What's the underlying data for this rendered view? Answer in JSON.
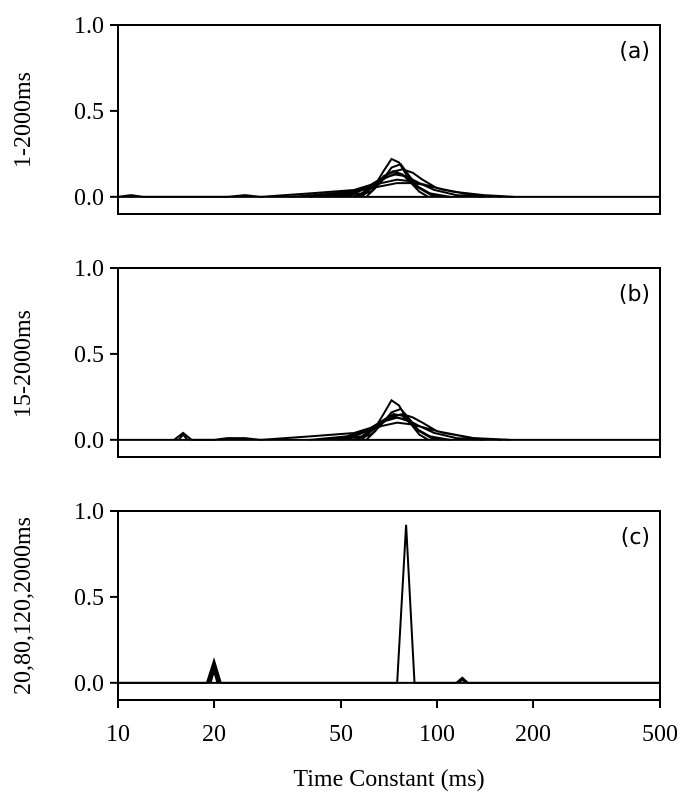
{
  "chart_data": {
    "type": "line",
    "x_scale": "log",
    "xlabel": "Time Constant (ms)",
    "xlim": [
      10,
      500
    ],
    "x_ticks": [
      10,
      20,
      50,
      100,
      200,
      500
    ],
    "x_tick_labels": [
      "10",
      "20",
      "50",
      "100",
      "200",
      "500"
    ],
    "grid": false,
    "legend": "none",
    "panels": [
      {
        "id": "a",
        "letter": "(a)",
        "ylabel": "1-2000ms",
        "ylim": [
          -0.1,
          1.0
        ],
        "y_ticks": [
          0.0,
          0.5,
          1.0
        ],
        "y_tick_labels": [
          "0.0",
          "0.5",
          "1.0"
        ],
        "series": [
          {
            "x": [
              10,
              11,
              12,
              14,
              17,
              22,
              25,
              28,
              40,
              55,
              62,
              66,
              70,
              74,
              78,
              84,
              90,
              100,
              130,
              170
            ],
            "y": [
              0,
              0.01,
              0,
              0,
              0,
              0,
              0.01,
              0,
              0.02,
              0.04,
              0.07,
              0.1,
              0.13,
              0.15,
              0.16,
              0.14,
              0.1,
              0.05,
              0.01,
              0
            ]
          },
          {
            "x": [
              50,
              58,
              64,
              68,
              72,
              76,
              80,
              86,
              95,
              110
            ],
            "y": [
              0,
              0.02,
              0.07,
              0.15,
              0.22,
              0.2,
              0.13,
              0.06,
              0.02,
              0
            ]
          },
          {
            "x": [
              55,
              62,
              67,
              72,
              77,
              82,
              88,
              96,
              110
            ],
            "y": [
              0,
              0.03,
              0.09,
              0.17,
              0.19,
              0.12,
              0.05,
              0.01,
              0
            ]
          },
          {
            "x": [
              45,
              55,
              62,
              68,
              74,
              80,
              88,
              98,
              115,
              140
            ],
            "y": [
              0,
              0.02,
              0.06,
              0.11,
              0.13,
              0.12,
              0.08,
              0.04,
              0.01,
              0
            ]
          },
          {
            "x": [
              40,
              52,
              60,
              67,
              75,
              83,
              92,
              105,
              130,
              160
            ],
            "y": [
              0,
              0.02,
              0.05,
              0.08,
              0.1,
              0.09,
              0.07,
              0.04,
              0.01,
              0
            ]
          },
          {
            "x": [
              35,
              48,
              58,
              66,
              75,
              85,
              96,
              112,
              140,
              175
            ],
            "y": [
              0,
              0.02,
              0.04,
              0.06,
              0.08,
              0.08,
              0.06,
              0.03,
              0.01,
              0
            ]
          },
          {
            "x": [
              60,
              64,
              68,
              73,
              78,
              83,
              88,
              94
            ],
            "y": [
              0,
              0.05,
              0.12,
              0.15,
              0.13,
              0.08,
              0.03,
              0
            ]
          },
          {
            "x": [
              58,
              63,
              69,
              75,
              81,
              87,
              95,
              105
            ],
            "y": [
              0,
              0.06,
              0.11,
              0.14,
              0.11,
              0.06,
              0.02,
              0
            ]
          }
        ]
      },
      {
        "id": "b",
        "letter": "(b)",
        "ylabel": "15-2000ms",
        "ylim": [
          -0.1,
          1.0
        ],
        "y_ticks": [
          0.0,
          0.5,
          1.0
        ],
        "y_tick_labels": [
          "0.0",
          "0.5",
          "1.0"
        ],
        "series": [
          {
            "x": [
              15,
              16,
              17,
              20,
              22,
              25,
              28,
              40,
              55,
              62,
              66,
              70,
              74,
              78,
              84,
              90,
              100,
              130,
              170
            ],
            "y": [
              0,
              0.04,
              0,
              0,
              0.01,
              0.01,
              0,
              0.02,
              0.04,
              0.07,
              0.1,
              0.13,
              0.14,
              0.15,
              0.13,
              0.1,
              0.05,
              0.01,
              0
            ]
          },
          {
            "x": [
              15.5,
              16,
              16.5
            ],
            "y": [
              0,
              0.03,
              0
            ]
          },
          {
            "x": [
              50,
              58,
              64,
              68,
              72,
              76,
              80,
              86,
              95,
              110
            ],
            "y": [
              0,
              0.02,
              0.07,
              0.15,
              0.23,
              0.2,
              0.13,
              0.06,
              0.02,
              0
            ]
          },
          {
            "x": [
              55,
              62,
              67,
              72,
              77,
              82,
              88,
              96,
              110
            ],
            "y": [
              0,
              0.03,
              0.09,
              0.16,
              0.18,
              0.12,
              0.05,
              0.01,
              0
            ]
          },
          {
            "x": [
              45,
              55,
              62,
              68,
              74,
              80,
              88,
              98,
              115,
              140
            ],
            "y": [
              0,
              0.02,
              0.06,
              0.11,
              0.13,
              0.12,
              0.08,
              0.04,
              0.01,
              0
            ]
          },
          {
            "x": [
              40,
              52,
              60,
              67,
              75,
              83,
              92,
              105,
              130,
              160
            ],
            "y": [
              0,
              0.02,
              0.05,
              0.08,
              0.1,
              0.09,
              0.07,
              0.04,
              0.01,
              0
            ]
          },
          {
            "x": [
              60,
              64,
              68,
              73,
              78,
              83,
              88,
              94
            ],
            "y": [
              0,
              0.05,
              0.11,
              0.15,
              0.14,
              0.09,
              0.03,
              0
            ]
          },
          {
            "x": [
              58,
              63,
              69,
              75,
              81,
              87,
              95,
              105
            ],
            "y": [
              0,
              0.06,
              0.11,
              0.13,
              0.11,
              0.06,
              0.02,
              0
            ]
          }
        ]
      },
      {
        "id": "c",
        "letter": "(c)",
        "ylabel": "20,80,120,2000ms",
        "ylim": [
          -0.1,
          1.0
        ],
        "y_ticks": [
          0.0,
          0.5,
          1.0
        ],
        "y_tick_labels": [
          "0.0",
          "0.5",
          "1.0"
        ],
        "series": [
          {
            "x": [
              10,
              19,
              20,
              21,
              75,
              80,
              85,
              115,
              120,
              125,
              500
            ],
            "y": [
              0,
              0,
              0.13,
              0,
              0,
              0.92,
              0,
              0,
              0.03,
              0,
              0
            ]
          },
          {
            "x": [
              19.2,
              20,
              20.8
            ],
            "y": [
              0,
              0.1,
              0
            ]
          },
          {
            "x": [
              19.5,
              20,
              20.5
            ],
            "y": [
              0,
              0.07,
              0
            ]
          },
          {
            "x": [
              117,
              120,
              123
            ],
            "y": [
              0,
              0.02,
              0
            ]
          }
        ]
      }
    ]
  }
}
